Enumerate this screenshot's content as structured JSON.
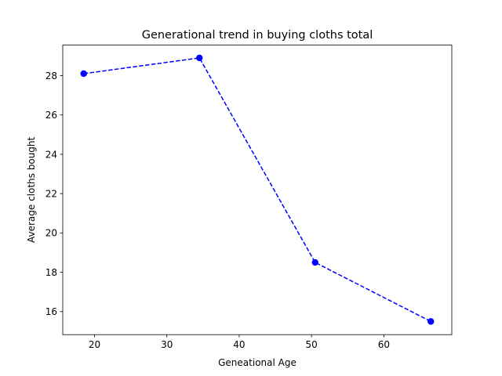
{
  "chart_data": {
    "type": "line",
    "title": "Generational trend in buying cloths total",
    "xlabel": "Geneational Age",
    "ylabel": "Average cloths bought",
    "xlim": [
      15.6,
      69.4
    ],
    "ylim": [
      14.83,
      29.55
    ],
    "xticks": [
      20,
      30,
      40,
      50,
      60
    ],
    "yticks": [
      16,
      18,
      20,
      22,
      24,
      26,
      28
    ],
    "grid": false,
    "series": [
      {
        "x": [
          18.5,
          34.5,
          50.5,
          66.5
        ],
        "values": [
          28.1,
          28.9,
          18.5,
          15.5
        ],
        "color": "#0000ff",
        "line_style": "dashed",
        "marker": "circle"
      }
    ]
  }
}
